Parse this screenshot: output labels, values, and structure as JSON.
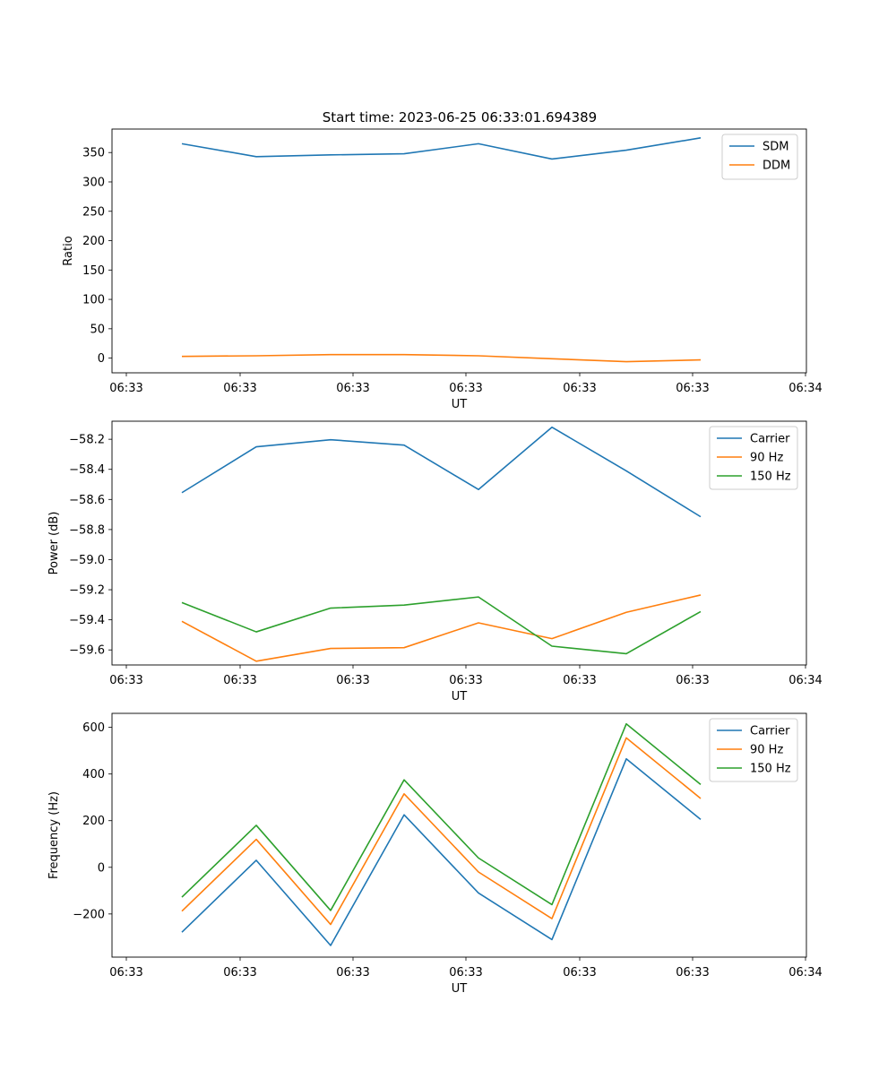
{
  "figure": {
    "title": "Start time: 2023-06-25 06:33:01.694389"
  },
  "chart_data": [
    {
      "type": "line",
      "title": "Start time: 2023-06-25 06:33:01.694389",
      "xlabel": "UT",
      "ylabel": "Ratio",
      "xticks": [
        "06:33",
        "06:33",
        "06:33",
        "06:33",
        "06:33",
        "06:33",
        "06:34"
      ],
      "yticks": [
        "0",
        "50",
        "100",
        "150",
        "200",
        "250",
        "300",
        "350"
      ],
      "ylim": [
        -25,
        390
      ],
      "grid": false,
      "legend_position": "top-right",
      "series": [
        {
          "name": "SDM",
          "color": "#1f77b4",
          "values": [
            365,
            343,
            346,
            348,
            365,
            339,
            354,
            375
          ]
        },
        {
          "name": "DDM",
          "color": "#ff7f0e",
          "values": [
            3,
            4,
            6,
            6,
            4,
            -1,
            -6,
            -3
          ]
        }
      ]
    },
    {
      "type": "line",
      "title": "",
      "xlabel": "UT",
      "ylabel": "Power (dB)",
      "xticks": [
        "06:33",
        "06:33",
        "06:33",
        "06:33",
        "06:33",
        "06:33",
        "06:34"
      ],
      "yticks": [
        "−59.6",
        "−59.4",
        "−59.2",
        "−59.0",
        "−58.8",
        "−58.6",
        "−58.4",
        "−58.2"
      ],
      "ylim": [
        -59.7,
        -58.08
      ],
      "grid": false,
      "legend_position": "top-right",
      "series": [
        {
          "name": "Carrier",
          "color": "#1f77b4",
          "values": [
            -58.555,
            -58.25,
            -58.203,
            -58.239,
            -58.534,
            -58.12,
            -58.41,
            -58.715
          ]
        },
        {
          "name": "90 Hz",
          "color": "#ff7f0e",
          "values": [
            -59.41,
            -59.675,
            -59.59,
            -59.585,
            -59.42,
            -59.525,
            -59.35,
            -59.235
          ]
        },
        {
          "name": "150 Hz",
          "color": "#2ca02c",
          "values": [
            -59.285,
            -59.48,
            -59.322,
            -59.302,
            -59.248,
            -59.575,
            -59.625,
            -59.345
          ]
        }
      ]
    },
    {
      "type": "line",
      "title": "",
      "xlabel": "UT",
      "ylabel": "Frequency (Hz)",
      "xticks": [
        "06:33",
        "06:33",
        "06:33",
        "06:33",
        "06:33",
        "06:33",
        "06:34"
      ],
      "yticks": [
        "−200",
        "0",
        "200",
        "400",
        "600"
      ],
      "ylim": [
        -385,
        660
      ],
      "grid": false,
      "legend_position": "top-right",
      "series": [
        {
          "name": "Carrier",
          "color": "#1f77b4",
          "values": [
            -278,
            30,
            -335,
            225,
            -110,
            -310,
            465,
            205
          ]
        },
        {
          "name": "90 Hz",
          "color": "#ff7f0e",
          "values": [
            -188,
            120,
            -245,
            315,
            -20,
            -220,
            555,
            295
          ]
        },
        {
          "name": "150 Hz",
          "color": "#2ca02c",
          "values": [
            -128,
            180,
            -185,
            375,
            40,
            -160,
            615,
            355
          ]
        }
      ]
    }
  ]
}
